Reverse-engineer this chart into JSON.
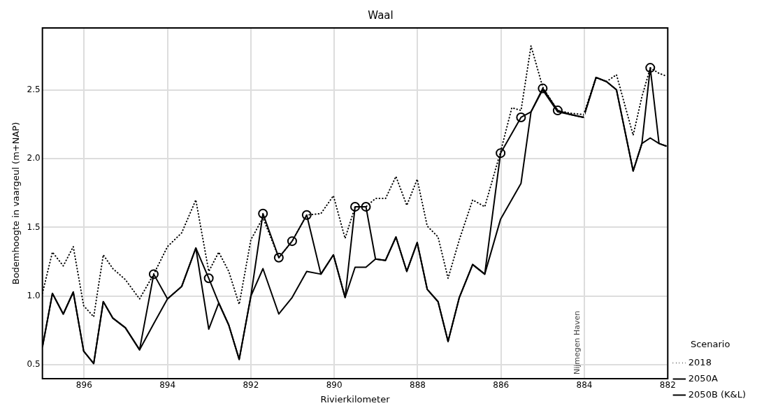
{
  "chart_data": {
    "type": "line",
    "title": "Waal",
    "xlabel": "Rivierkilometer",
    "ylabel": "Bodemhoogte in vaargeul (m+NAP)",
    "legend_title": "Scenario",
    "x": [
      897.0,
      896.76,
      896.5,
      896.26,
      896.01,
      895.77,
      895.54,
      895.31,
      895.01,
      894.67,
      894.33,
      894.0,
      893.66,
      893.32,
      893.01,
      892.77,
      892.53,
      892.28,
      892.0,
      891.71,
      891.33,
      891.01,
      890.66,
      890.32,
      890.02,
      889.74,
      889.5,
      889.24,
      889.01,
      888.77,
      888.52,
      888.26,
      888.01,
      887.77,
      887.51,
      887.27,
      887.0,
      886.68,
      886.39,
      886.01,
      885.52,
      885.28,
      885.0,
      884.64,
      884.33,
      884.02,
      883.72,
      883.47,
      883.23,
      882.83,
      882.62,
      882.42,
      882.21,
      882.03
    ],
    "series": [
      {
        "name": "2018",
        "color": "#000000",
        "line_style": "dotted",
        "x": [
          897.0,
          896.76,
          896.5,
          896.26,
          896.01,
          895.77,
          895.54,
          895.31,
          895.01,
          894.67,
          894.33,
          894.0,
          893.66,
          893.32,
          893.01,
          892.77,
          892.53,
          892.28,
          892.0,
          891.71,
          891.33,
          891.01,
          890.66,
          890.32,
          890.02,
          889.74,
          889.5,
          889.24,
          889.01,
          888.77,
          888.52,
          888.26,
          888.01,
          887.77,
          887.51,
          887.27,
          887.0,
          886.68,
          886.39,
          886.01,
          885.74,
          885.52,
          885.28,
          885.0,
          884.64,
          884.33,
          884.02,
          883.72,
          883.47,
          883.23,
          882.83,
          882.62,
          882.42,
          882.21,
          882.03
        ],
        "values": [
          1.02,
          1.32,
          1.22,
          1.36,
          0.93,
          0.85,
          1.3,
          1.2,
          1.12,
          0.98,
          1.16,
          1.36,
          1.46,
          1.7,
          1.18,
          1.32,
          1.18,
          0.94,
          1.41,
          1.57,
          1.28,
          1.4,
          1.59,
          1.6,
          1.73,
          1.42,
          1.65,
          1.65,
          1.71,
          1.71,
          1.87,
          1.66,
          1.85,
          1.51,
          1.43,
          1.13,
          1.41,
          1.7,
          1.65,
          2.05,
          2.37,
          2.35,
          2.82,
          2.52,
          2.35,
          2.33,
          2.32,
          2.59,
          2.56,
          2.61,
          2.17,
          2.45,
          2.66,
          2.62,
          2.6
        ]
      },
      {
        "name": "2050A",
        "color": "#000000",
        "line_style": "solid",
        "values": [
          0.63,
          1.02,
          0.87,
          1.03,
          0.6,
          0.51,
          0.96,
          0.84,
          0.77,
          0.61,
          0.8,
          0.98,
          1.07,
          1.35,
          0.76,
          0.95,
          0.79,
          0.54,
          1.0,
          1.2,
          0.87,
          0.99,
          1.18,
          1.16,
          1.3,
          0.99,
          1.21,
          1.21,
          1.27,
          1.26,
          1.43,
          1.18,
          1.39,
          1.05,
          0.96,
          0.67,
          0.99,
          1.23,
          1.16,
          1.56,
          1.82,
          2.34,
          2.5,
          2.34,
          2.32,
          2.3,
          2.59,
          2.56,
          2.5,
          1.91,
          2.11,
          2.15,
          2.11,
          2.09
        ]
      },
      {
        "name": "2050B (K&L)",
        "color": "#000000",
        "line_style": "solid",
        "values": [
          0.63,
          1.02,
          0.87,
          1.03,
          0.6,
          0.51,
          0.96,
          0.84,
          0.77,
          0.61,
          1.16,
          0.98,
          1.07,
          1.35,
          1.13,
          0.95,
          0.79,
          0.54,
          1.0,
          1.6,
          1.28,
          1.4,
          1.59,
          1.16,
          1.3,
          0.99,
          1.65,
          1.65,
          1.27,
          1.26,
          1.43,
          1.18,
          1.39,
          1.05,
          0.96,
          0.67,
          0.99,
          1.23,
          1.16,
          2.04,
          2.3,
          2.34,
          2.51,
          2.35,
          2.32,
          2.3,
          2.59,
          2.56,
          2.5,
          1.91,
          2.11,
          2.66,
          2.11,
          2.09
        ]
      },
      {
        "type": "scatter",
        "color": "#000000",
        "marker": "circle",
        "x": [
          894.33,
          893.01,
          891.71,
          891.33,
          891.01,
          890.66,
          889.5,
          889.24,
          886.01,
          885.52,
          885.0,
          884.64,
          882.42
        ],
        "values": [
          1.16,
          1.13,
          1.6,
          1.28,
          1.4,
          1.59,
          1.65,
          1.65,
          2.04,
          2.3,
          2.51,
          2.35,
          2.66
        ]
      }
    ],
    "xlim": [
      897,
      882
    ],
    "xticks": [
      896,
      894,
      892,
      890,
      888,
      886,
      884,
      882
    ],
    "ylim": [
      0.4,
      2.95
    ],
    "yticks": [
      {
        "value": 0.5,
        "label": "0.5"
      },
      {
        "value": 1,
        "label": "1.0"
      },
      {
        "value": 1.5,
        "label": "1.5"
      },
      {
        "value": 2,
        "label": "2.0"
      },
      {
        "value": 2.5,
        "label": "2.5"
      }
    ],
    "ref_lines": [
      {
        "axis": "x",
        "value": 884,
        "label": "Nijmegen Haven",
        "color": "#dddddd",
        "line_style": "dashed"
      }
    ],
    "grid": true,
    "legend": "bottom right"
  }
}
